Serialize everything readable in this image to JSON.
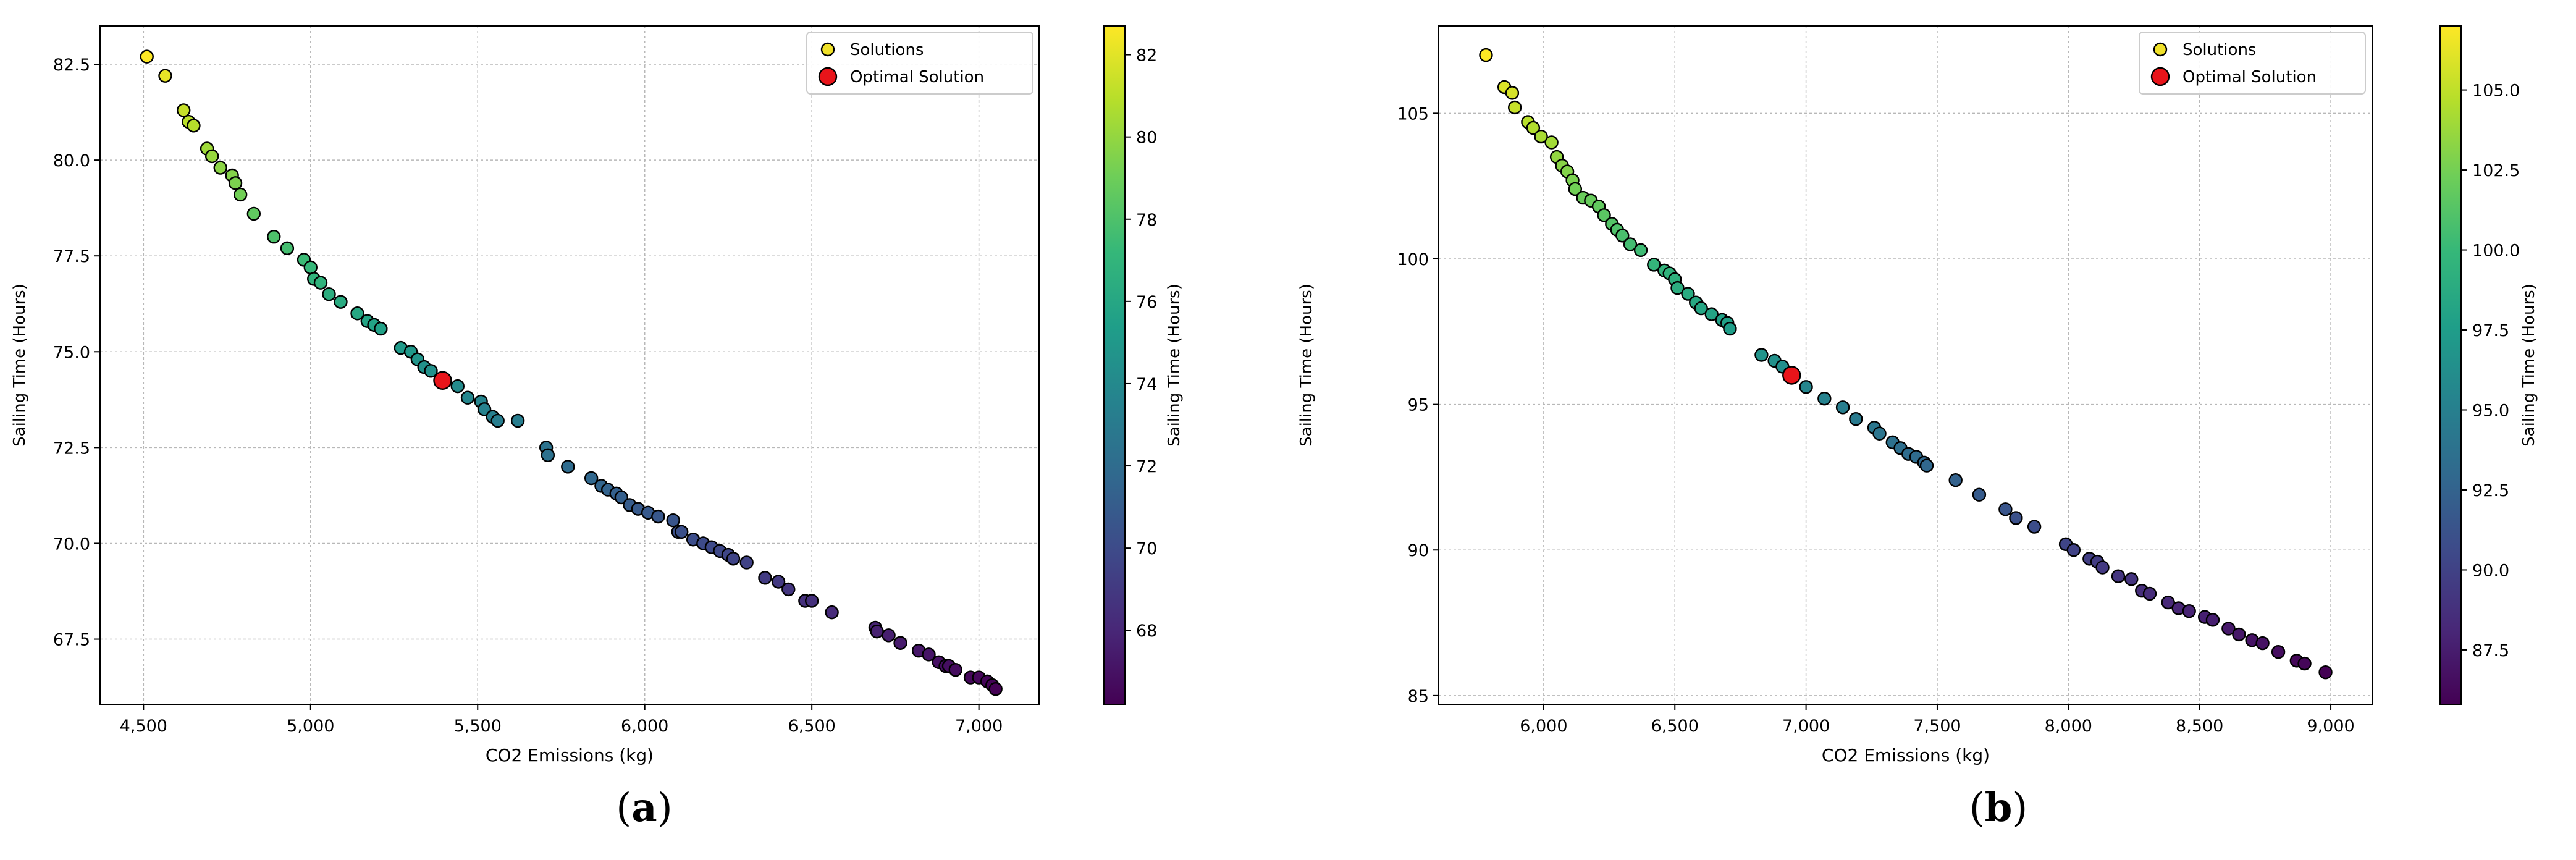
{
  "colors": {
    "solution_marker_legend": "#f0e12a",
    "optimal": "#e8141a",
    "marker_edge": "#000000",
    "grid": "#b8b8b8",
    "colormap": [
      "#440154",
      "#482878",
      "#3e4989",
      "#31688e",
      "#26828e",
      "#1f9e89",
      "#35b779",
      "#6ece58",
      "#b5de2b",
      "#fde725"
    ]
  },
  "chart_data": [
    {
      "type": "scatter",
      "panel_label": "a",
      "xlabel": "CO2 Emissions (kg)",
      "ylabel": "Sailing Time (Hours)",
      "colorbar_label": "Sailing Time (Hours)",
      "xlim": [
        4370,
        7180
      ],
      "ylim": [
        65.8,
        83.5
      ],
      "xticks": [
        4500,
        5000,
        5500,
        6000,
        6500,
        7000
      ],
      "xtick_labels": [
        "4,500",
        "5,000",
        "5,500",
        "6,000",
        "6,500",
        "7,000"
      ],
      "yticks": [
        67.5,
        70.0,
        72.5,
        75.0,
        77.5,
        80.0,
        82.5
      ],
      "ytick_labels": [
        "67.5",
        "70.0",
        "72.5",
        "75.0",
        "77.5",
        "80.0",
        "82.5"
      ],
      "colorbar_range": [
        66.2,
        82.7
      ],
      "colorbar_ticks": [
        68,
        70,
        72,
        74,
        76,
        78,
        80,
        82
      ],
      "colorbar_tick_labels": [
        "68",
        "70",
        "72",
        "74",
        "76",
        "78",
        "80",
        "82"
      ],
      "grid": true,
      "legend_position": "top-right",
      "legend": [
        "Solutions",
        "Optimal Solution"
      ],
      "series": [
        {
          "name": "Solutions",
          "points": [
            [
              4510,
              82.7
            ],
            [
              4565,
              82.2
            ],
            [
              4620,
              81.3
            ],
            [
              4635,
              81.0
            ],
            [
              4650,
              80.9
            ],
            [
              4690,
              80.3
            ],
            [
              4705,
              80.1
            ],
            [
              4730,
              79.8
            ],
            [
              4765,
              79.6
            ],
            [
              4775,
              79.4
            ],
            [
              4790,
              79.1
            ],
            [
              4830,
              78.6
            ],
            [
              4890,
              78.0
            ],
            [
              4930,
              77.7
            ],
            [
              4980,
              77.4
            ],
            [
              5000,
              77.2
            ],
            [
              5010,
              76.9
            ],
            [
              5030,
              76.8
            ],
            [
              5055,
              76.5
            ],
            [
              5090,
              76.3
            ],
            [
              5140,
              76.0
            ],
            [
              5170,
              75.8
            ],
            [
              5190,
              75.7
            ],
            [
              5210,
              75.6
            ],
            [
              5270,
              75.1
            ],
            [
              5300,
              75.0
            ],
            [
              5320,
              74.8
            ],
            [
              5340,
              74.6
            ],
            [
              5360,
              74.5
            ],
            [
              5440,
              74.1
            ],
            [
              5470,
              73.8
            ],
            [
              5510,
              73.7
            ],
            [
              5520,
              73.5
            ],
            [
              5545,
              73.3
            ],
            [
              5560,
              73.2
            ],
            [
              5620,
              73.2
            ],
            [
              5705,
              72.5
            ],
            [
              5710,
              72.3
            ],
            [
              5770,
              72.0
            ],
            [
              5840,
              71.7
            ],
            [
              5870,
              71.5
            ],
            [
              5890,
              71.4
            ],
            [
              5915,
              71.3
            ],
            [
              5930,
              71.2
            ],
            [
              5955,
              71.0
            ],
            [
              5980,
              70.9
            ],
            [
              6010,
              70.8
            ],
            [
              6040,
              70.7
            ],
            [
              6085,
              70.6
            ],
            [
              6100,
              70.3
            ],
            [
              6110,
              70.3
            ],
            [
              6145,
              70.1
            ],
            [
              6175,
              70.0
            ],
            [
              6200,
              69.9
            ],
            [
              6225,
              69.8
            ],
            [
              6250,
              69.7
            ],
            [
              6265,
              69.6
            ],
            [
              6305,
              69.5
            ],
            [
              6360,
              69.1
            ],
            [
              6400,
              69.0
            ],
            [
              6430,
              68.8
            ],
            [
              6480,
              68.5
            ],
            [
              6500,
              68.5
            ],
            [
              6560,
              68.2
            ],
            [
              6690,
              67.8
            ],
            [
              6695,
              67.7
            ],
            [
              6730,
              67.6
            ],
            [
              6765,
              67.4
            ],
            [
              6820,
              67.2
            ],
            [
              6850,
              67.1
            ],
            [
              6880,
              66.9
            ],
            [
              6900,
              66.8
            ],
            [
              6910,
              66.8
            ],
            [
              6930,
              66.7
            ],
            [
              6975,
              66.5
            ],
            [
              7000,
              66.5
            ],
            [
              7025,
              66.4
            ],
            [
              7040,
              66.3
            ],
            [
              7050,
              66.2
            ]
          ]
        },
        {
          "name": "Optimal Solution",
          "points": [
            [
              5395,
              74.25
            ]
          ]
        }
      ]
    },
    {
      "type": "scatter",
      "panel_label": "b",
      "xlabel": "CO2 Emissions (kg)",
      "ylabel": "Sailing Time (Hours)",
      "colorbar_label": "Sailing Time (Hours)",
      "xlim": [
        5600,
        9160
      ],
      "ylim": [
        84.7,
        108.0
      ],
      "xticks": [
        6000,
        6500,
        7000,
        7500,
        8000,
        8500,
        9000
      ],
      "xtick_labels": [
        "6,000",
        "6,500",
        "7,000",
        "7,500",
        "8,000",
        "8,500",
        "9,000"
      ],
      "yticks": [
        85,
        90,
        95,
        100,
        105
      ],
      "ytick_labels": [
        "85",
        "90",
        "95",
        "100",
        "105"
      ],
      "colorbar_range": [
        85.8,
        107.0
      ],
      "colorbar_ticks": [
        87.5,
        90.0,
        92.5,
        95.0,
        97.5,
        100.0,
        102.5,
        105.0
      ],
      "colorbar_tick_labels": [
        "87.5",
        "90.0",
        "92.5",
        "95.0",
        "97.5",
        "100.0",
        "102.5",
        "105.0"
      ],
      "grid": true,
      "legend_position": "top-right",
      "legend": [
        "Solutions",
        "Optimal Solution"
      ],
      "series": [
        {
          "name": "Solutions",
          "points": [
            [
              5780,
              107.0
            ],
            [
              5850,
              105.9
            ],
            [
              5880,
              105.7
            ],
            [
              5890,
              105.2
            ],
            [
              5940,
              104.7
            ],
            [
              5960,
              104.5
            ],
            [
              5990,
              104.2
            ],
            [
              6030,
              104.0
            ],
            [
              6050,
              103.5
            ],
            [
              6070,
              103.2
            ],
            [
              6090,
              103.0
            ],
            [
              6110,
              102.7
            ],
            [
              6120,
              102.4
            ],
            [
              6150,
              102.1
            ],
            [
              6180,
              102.0
            ],
            [
              6210,
              101.8
            ],
            [
              6230,
              101.5
            ],
            [
              6260,
              101.2
            ],
            [
              6280,
              101.0
            ],
            [
              6300,
              100.8
            ],
            [
              6330,
              100.5
            ],
            [
              6370,
              100.3
            ],
            [
              6420,
              99.8
            ],
            [
              6460,
              99.6
            ],
            [
              6480,
              99.5
            ],
            [
              6500,
              99.3
            ],
            [
              6510,
              99.0
            ],
            [
              6550,
              98.8
            ],
            [
              6580,
              98.5
            ],
            [
              6600,
              98.3
            ],
            [
              6640,
              98.1
            ],
            [
              6680,
              97.9
            ],
            [
              6700,
              97.8
            ],
            [
              6710,
              97.6
            ],
            [
              6830,
              96.7
            ],
            [
              6880,
              96.5
            ],
            [
              6910,
              96.3
            ],
            [
              7000,
              95.6
            ],
            [
              7070,
              95.2
            ],
            [
              7140,
              94.9
            ],
            [
              7190,
              94.5
            ],
            [
              7260,
              94.2
            ],
            [
              7280,
              94.0
            ],
            [
              7330,
              93.7
            ],
            [
              7360,
              93.5
            ],
            [
              7390,
              93.3
            ],
            [
              7420,
              93.2
            ],
            [
              7450,
              93.0
            ],
            [
              7460,
              92.9
            ],
            [
              7570,
              92.4
            ],
            [
              7660,
              91.9
            ],
            [
              7760,
              91.4
            ],
            [
              7800,
              91.1
            ],
            [
              7870,
              90.8
            ],
            [
              7990,
              90.2
            ],
            [
              8020,
              90.0
            ],
            [
              8080,
              89.7
            ],
            [
              8110,
              89.6
            ],
            [
              8130,
              89.4
            ],
            [
              8190,
              89.1
            ],
            [
              8240,
              89.0
            ],
            [
              8280,
              88.6
            ],
            [
              8310,
              88.5
            ],
            [
              8380,
              88.2
            ],
            [
              8420,
              88.0
            ],
            [
              8460,
              87.9
            ],
            [
              8520,
              87.7
            ],
            [
              8550,
              87.6
            ],
            [
              8610,
              87.3
            ],
            [
              8650,
              87.1
            ],
            [
              8700,
              86.9
            ],
            [
              8740,
              86.8
            ],
            [
              8800,
              86.5
            ],
            [
              8870,
              86.2
            ],
            [
              8900,
              86.1
            ],
            [
              8980,
              85.8
            ]
          ]
        },
        {
          "name": "Optimal Solution",
          "points": [
            [
              6945,
              96.0
            ]
          ]
        }
      ]
    }
  ]
}
